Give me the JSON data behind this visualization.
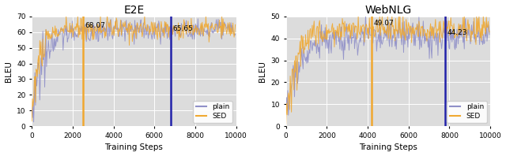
{
  "e2e_title": "E2E",
  "webnlg_title": "WebNLG",
  "xlabel": "Training Steps",
  "ylabel": "BLEU",
  "e2e_ylim": [
    0,
    70
  ],
  "webnlg_ylim": [
    0,
    50
  ],
  "e2e_xlim": [
    0,
    10000
  ],
  "webnlg_xlim": [
    0,
    10000
  ],
  "e2e_orange_vline": 2500,
  "e2e_blue_vline": 6800,
  "e2e_orange_label": "68.07",
  "e2e_blue_label": "65.65",
  "webnlg_orange_vline": 4200,
  "webnlg_blue_vline": 7800,
  "webnlg_orange_label": "49.07",
  "webnlg_blue_label": "44.23",
  "plain_color": "#9090c8",
  "sed_color": "#f0a830",
  "vline_plain_color": "#2222aa",
  "vline_sed_color": "#f0a830",
  "bg_color": "#dcdcdc",
  "seed": 42,
  "n_steps": 10000,
  "step_size": 30
}
